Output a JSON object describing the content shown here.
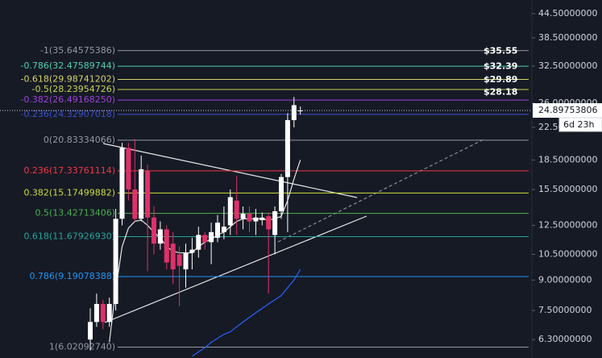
{
  "chart_data": {
    "type": "candlestick",
    "log_scale": true,
    "ylim": [
      5.64,
      48.3
    ],
    "yticks": [
      {
        "value": 44.5,
        "label": "44.50000000"
      },
      {
        "value": 38.5,
        "label": "38.50000000"
      },
      {
        "value": 32.5,
        "label": "32.50000000"
      },
      {
        "value": 26,
        "label": "26.00000000"
      },
      {
        "value": 22.5,
        "label": "22.50000000"
      },
      {
        "value": 18.5,
        "label": "18.50000000"
      },
      {
        "value": 15.5,
        "label": "15.50000000"
      },
      {
        "value": 12.5,
        "label": "12.50000000"
      },
      {
        "value": 10.5,
        "label": "10.50000000"
      },
      {
        "value": 9,
        "label": "9.00000000"
      },
      {
        "value": 7.5,
        "label": "7.50000000"
      },
      {
        "value": 6.3,
        "label": "6.30000000"
      }
    ],
    "up_color": "#ffffff",
    "down_color": "#e0306a",
    "candles": [
      {
        "open": 6.3,
        "high": 7.6,
        "low": 5.9,
        "close": 7.0
      },
      {
        "open": 7.0,
        "high": 8.3,
        "low": 6.8,
        "close": 7.8
      },
      {
        "open": 7.8,
        "high": 8.0,
        "low": 6.7,
        "close": 7.0
      },
      {
        "open": 7.0,
        "high": 8.1,
        "low": 6.8,
        "close": 7.8
      },
      {
        "open": 7.8,
        "high": 13.8,
        "low": 7.5,
        "close": 13.0
      },
      {
        "open": 13.0,
        "high": 20.5,
        "low": 12.5,
        "close": 19.9
      },
      {
        "open": 19.9,
        "high": 20.5,
        "low": 14.5,
        "close": 15.5
      },
      {
        "open": 15.5,
        "high": 21.0,
        "low": 12.8,
        "close": 13.0
      },
      {
        "open": 13.0,
        "high": 19.0,
        "low": 12.8,
        "close": 17.5
      },
      {
        "open": 17.3,
        "high": 18.0,
        "low": 9.5,
        "close": 13.1
      },
      {
        "open": 13.1,
        "high": 14.0,
        "low": 10.5,
        "close": 11.2
      },
      {
        "open": 11.2,
        "high": 12.8,
        "low": 10.8,
        "close": 12.2
      },
      {
        "open": 12.2,
        "high": 12.5,
        "low": 9.6,
        "close": 10.0
      },
      {
        "open": 11.2,
        "high": 12.0,
        "low": 8.8,
        "close": 9.6
      },
      {
        "open": 10.5,
        "high": 11.0,
        "low": 7.7,
        "close": 9.8
      },
      {
        "open": 9.6,
        "high": 11.2,
        "low": 8.6,
        "close": 10.6
      },
      {
        "open": 10.6,
        "high": 11.6,
        "low": 9.6,
        "close": 10.8
      },
      {
        "open": 10.8,
        "high": 12.4,
        "low": 10.3,
        "close": 11.8
      },
      {
        "open": 11.8,
        "high": 12.0,
        "low": 10.8,
        "close": 11.3
      },
      {
        "open": 11.3,
        "high": 12.7,
        "low": 9.9,
        "close": 12.0
      },
      {
        "open": 11.6,
        "high": 13.3,
        "low": 11.3,
        "close": 12.7
      },
      {
        "open": 12.0,
        "high": 14.0,
        "low": 11.5,
        "close": 12.4
      },
      {
        "open": 12.5,
        "high": 15.5,
        "low": 11.8,
        "close": 14.8
      },
      {
        "open": 14.5,
        "high": 16.8,
        "low": 11.8,
        "close": 13.0
      },
      {
        "open": 13.0,
        "high": 14.0,
        "low": 12.2,
        "close": 13.4
      },
      {
        "open": 13.4,
        "high": 14.0,
        "low": 12.0,
        "close": 12.8
      },
      {
        "open": 12.8,
        "high": 13.8,
        "low": 11.8,
        "close": 13.1
      },
      {
        "open": 12.9,
        "high": 13.5,
        "low": 12.5,
        "close": 13.1
      },
      {
        "open": 13.2,
        "high": 13.5,
        "low": 8.3,
        "close": 12.2
      },
      {
        "open": 11.8,
        "high": 14.0,
        "low": 10.5,
        "close": 13.6
      },
      {
        "open": 13.6,
        "high": 17.0,
        "low": 13.0,
        "close": 16.7
      },
      {
        "open": 16.7,
        "high": 24.5,
        "low": 12.0,
        "close": 23.5
      },
      {
        "open": 23.5,
        "high": 27.0,
        "low": 22.5,
        "close": 25.7
      },
      {
        "open": 24.8,
        "high": 25.5,
        "low": 24.3,
        "close": 24.9
      }
    ],
    "series": [
      {
        "color": "#e6e6e6",
        "values": [
          null,
          null,
          null,
          6.2,
          8.5,
          11.0,
          12.3,
          12.8,
          12.9,
          12.5,
          12.0,
          11.6,
          11.0,
          10.7,
          10.6,
          10.6,
          10.6,
          11.0,
          11.3,
          11.5,
          11.8,
          12.0,
          12.4,
          12.8,
          13.0,
          13.0,
          13.0,
          13.0,
          12.9,
          13.0,
          13.2,
          14.5,
          16.5,
          18.5
        ]
      },
      {
        "color": "#2962ff",
        "values": [
          null,
          null,
          null,
          null,
          null,
          null,
          null,
          null,
          null,
          null,
          null,
          null,
          null,
          null,
          null,
          null,
          5.7,
          5.85,
          6.0,
          6.2,
          6.35,
          6.5,
          6.6,
          6.8,
          7.0,
          7.2,
          7.4,
          7.6,
          7.8,
          8.0,
          8.2,
          8.6,
          9.0,
          9.6
        ]
      }
    ],
    "fib_levels": [
      {
        "label": "-1(35.64575386)",
        "value": 35.64575386,
        "color": "#9598a1"
      },
      {
        "label": "-0.786(32.47589744)",
        "value": 32.47589744,
        "color": "#4dd0b0"
      },
      {
        "label": "-0.618(29.98741202)",
        "value": 29.98741202,
        "color": "#d4d26a"
      },
      {
        "label": "-0.5(28.23954726)",
        "value": 28.23954726,
        "color": "#c7d64c"
      },
      {
        "label": "-0.382(26.49168250)",
        "value": 26.4916825,
        "color": "#9c40d8"
      },
      {
        "label": "-0.236(24.32907018)",
        "value": 24.32907018,
        "color": "#3a50d0"
      },
      {
        "label": "0(20.83334066)",
        "value": 20.83334066,
        "color": "#9598a1"
      },
      {
        "label": "0.236(17.33761114)",
        "value": 17.33761114,
        "color": "#f23645"
      },
      {
        "label": "0.382(15.17499882)",
        "value": 15.17499882,
        "color": "#cddc39"
      },
      {
        "label": "0.5(13.42713406)",
        "value": 13.42713406,
        "color": "#4caf50"
      },
      {
        "label": "0.618(11.67926930)",
        "value": 11.6792693,
        "color": "#26a69a"
      },
      {
        "label": "0.786(9.19078388)",
        "value": 9.19078388,
        "color": "#2196f3"
      },
      {
        "label": "1(6.02092740)",
        "value": 6.0209274,
        "color": "#9598a1"
      }
    ],
    "price_badges": [
      {
        "label": "$35.55",
        "value": 35.55
      },
      {
        "label": "$32.39",
        "value": 32.39
      },
      {
        "label": "$29.89",
        "value": 29.89
      },
      {
        "label": "$28.18",
        "value": 28.18
      }
    ],
    "current_price": 24.89753806,
    "countdown": "6d 23h"
  }
}
